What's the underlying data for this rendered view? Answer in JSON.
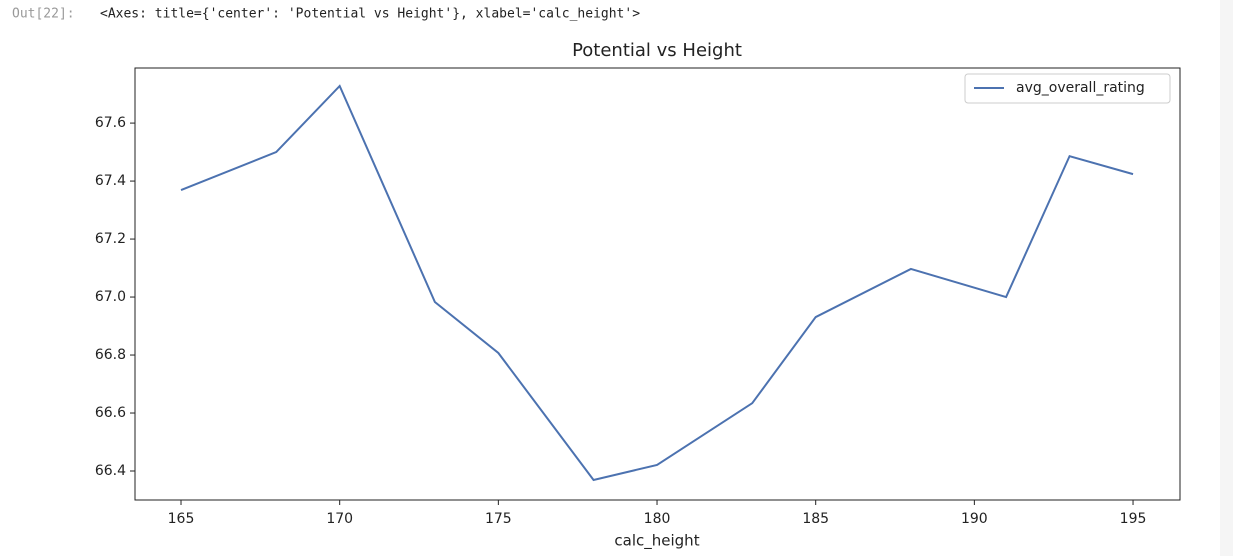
{
  "output_prompt": "Out[22]:",
  "output_repr": "<Axes: title={'center': 'Potential vs Height'}, xlabel='calc_height'>",
  "chart_data": {
    "type": "line",
    "title": "Potential vs Height",
    "xlabel": "calc_height",
    "x": [
      165,
      168,
      170,
      173,
      175,
      178,
      180,
      183,
      185,
      188,
      191,
      193,
      195
    ],
    "series": [
      {
        "name": "avg_overall_rating",
        "color": "#4c72b0",
        "values": [
          67.369,
          67.5,
          67.728,
          66.983,
          66.807,
          66.369,
          66.421,
          66.634,
          66.931,
          67.097,
          67.0,
          67.486,
          67.424
        ]
      }
    ],
    "xlim": [
      163.55,
      196.48
    ],
    "xticks": [
      165,
      170,
      175,
      180,
      185,
      190,
      195
    ],
    "ylim": [
      66.3,
      67.79
    ],
    "yticks": [
      66.4,
      66.6,
      66.8,
      {
        "value": 67,
        "label": "67.0"
      },
      67.2,
      67.4,
      67.6
    ],
    "grid": false,
    "legend": "upper right"
  }
}
